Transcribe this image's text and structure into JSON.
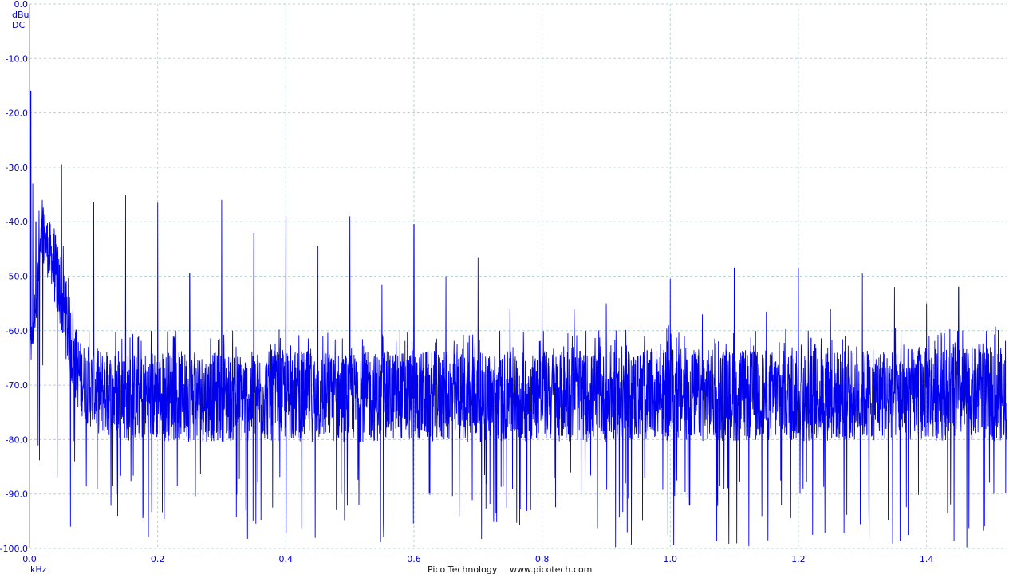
{
  "chart_data": {
    "type": "line",
    "y_unit": "dBu",
    "y_coupling": "DC",
    "x_unit": "kHz",
    "xlim": [
      0.0,
      1.525
    ],
    "ylim": [
      -100.0,
      0.0
    ],
    "x_ticks": [
      "0.0",
      "0.2",
      "0.4",
      "0.6",
      "0.8",
      "1.0",
      "1.2",
      "1.4"
    ],
    "y_ticks": [
      "0.0",
      "-10.0",
      "-20.0",
      "-30.0",
      "-40.0",
      "-50.0",
      "-60.0",
      "-70.0",
      "-80.0",
      "-90.0",
      "-100.0"
    ],
    "grid": true,
    "series": [
      {
        "x": [
          0.0,
          0.002,
          0.005,
          0.01,
          0.015,
          0.02,
          0.025,
          0.03,
          0.035,
          0.04,
          0.045,
          0.05,
          0.055,
          0.06,
          0.065,
          0.07,
          0.075,
          0.08,
          0.085,
          0.09,
          0.095,
          0.1,
          0.105,
          0.11,
          0.12,
          0.13,
          0.14,
          0.15,
          0.16,
          0.17,
          0.18,
          0.19,
          0.2,
          0.21,
          0.22,
          0.23,
          0.24,
          0.25,
          0.26,
          0.27,
          0.28,
          0.29,
          0.3,
          0.31,
          0.32,
          0.33,
          0.34,
          0.35,
          0.36,
          0.37,
          0.38,
          0.39,
          0.4,
          0.41,
          0.42,
          0.43,
          0.44,
          0.45,
          0.46,
          0.47,
          0.48,
          0.49,
          0.5,
          0.51,
          0.52,
          0.53,
          0.54,
          0.55,
          0.56,
          0.57,
          0.58,
          0.59,
          0.6,
          0.61,
          0.62,
          0.63,
          0.64,
          0.65,
          0.66,
          0.67,
          0.68,
          0.69,
          0.7,
          0.71,
          0.72,
          0.73,
          0.74,
          0.75,
          0.76,
          0.77,
          0.78,
          0.79,
          0.8,
          0.81,
          0.82,
          0.83,
          0.84,
          0.85,
          0.86,
          0.87,
          0.88,
          0.89,
          0.9,
          0.91,
          0.92,
          0.93,
          0.94,
          0.95,
          0.96,
          0.97,
          0.98,
          0.99,
          1.0,
          1.01,
          1.02,
          1.03,
          1.04,
          1.05,
          1.06,
          1.07,
          1.08,
          1.09,
          1.1,
          1.11,
          1.12,
          1.13,
          1.14,
          1.15,
          1.16,
          1.17,
          1.18,
          1.19,
          1.2,
          1.21,
          1.22,
          1.23,
          1.24,
          1.25,
          1.26,
          1.27,
          1.28,
          1.29,
          1.3,
          1.31,
          1.32,
          1.33,
          1.34,
          1.35,
          1.36,
          1.37,
          1.38,
          1.39,
          1.4,
          1.41,
          1.42,
          1.43,
          1.44,
          1.45,
          1.46,
          1.47,
          1.48,
          1.49,
          1.5,
          1.51,
          1.52
        ],
        "y": [
          -65.0,
          -16.0,
          -33.0,
          -40.0,
          -38.0,
          -36.0,
          -42.0,
          -46.0,
          -50.0,
          -52.0,
          -55.0,
          -29.5,
          -58.0,
          -60.0,
          -62.0,
          -64.0,
          -66.0,
          -68.0,
          -70.0,
          -72.0,
          -70.0,
          -36.5,
          -71.0,
          -72.0,
          -71.0,
          -72.0,
          -72.0,
          -35.0,
          -73.0,
          -72.0,
          -71.0,
          -72.0,
          -36.5,
          -72.0,
          -73.0,
          -72.0,
          -72.0,
          -49.5,
          -72.0,
          -71.0,
          -72.0,
          -72.0,
          -36.0,
          -73.0,
          -72.0,
          -71.0,
          -72.0,
          -42.0,
          -72.0,
          -73.0,
          -72.0,
          -71.0,
          -39.0,
          -72.0,
          -72.0,
          -73.0,
          -72.0,
          -44.5,
          -72.0,
          -71.0,
          -72.0,
          -72.0,
          -39.0,
          -72.0,
          -73.0,
          -71.0,
          -72.0,
          -51.5,
          -72.0,
          -72.0,
          -71.0,
          -72.0,
          -40.5,
          -72.0,
          -73.0,
          -72.0,
          -72.0,
          -50.0,
          -72.0,
          -71.0,
          -72.0,
          -72.0,
          -46.5,
          -72.0,
          -73.0,
          -72.0,
          -71.0,
          -56.0,
          -72.0,
          -72.0,
          -71.0,
          -72.0,
          -47.5,
          -72.0,
          -73.0,
          -71.0,
          -72.0,
          -56.0,
          -72.0,
          -72.0,
          -71.0,
          -72.0,
          -55.0,
          -72.0,
          -72.0,
          -73.0,
          -71.0,
          -58.0,
          -72.0,
          -72.0,
          -71.0,
          -72.0,
          -50.5,
          -72.0,
          -72.0,
          -71.0,
          -72.0,
          -57.0,
          -72.0,
          -71.0,
          -72.0,
          -72.0,
          -48.5,
          -72.0,
          -72.0,
          -71.0,
          -72.0,
          -56.5,
          -72.0,
          -71.0,
          -72.0,
          -72.0,
          -48.5,
          -72.0,
          -72.0,
          -71.0,
          -72.0,
          -56.0,
          -72.0,
          -71.0,
          -72.0,
          -72.0,
          -49.5,
          -72.0,
          -72.0,
          -71.0,
          -72.0,
          -52.0,
          -72.0,
          -72.0,
          -71.0,
          -72.0,
          -55.0,
          -72.0,
          -71.0,
          -72.0,
          -72.0,
          -52.0,
          -72.0,
          -72.0,
          -71.0,
          -72.0,
          -58.0,
          -72.0,
          -71.0
        ]
      }
    ],
    "noise_floor": {
      "x": [
        0.0,
        0.02,
        0.04,
        0.06,
        0.07,
        0.08,
        0.1,
        0.15,
        0.2,
        0.3,
        0.4,
        0.5,
        0.6,
        0.7,
        0.8,
        0.9,
        1.0,
        1.1,
        1.2,
        1.3,
        1.4,
        1.5,
        1.525
      ],
      "upper": [
        -62.0,
        -37.0,
        -42.0,
        -52.0,
        -58.0,
        -62.0,
        -63.0,
        -64.0,
        -63.5,
        -64.0,
        -63.5,
        -64.0,
        -63.5,
        -64.0,
        -63.5,
        -64.0,
        -63.0,
        -63.5,
        -63.5,
        -63.5,
        -63.0,
        -63.0,
        -63.0
      ],
      "lower": [
        -73.0,
        -50.0,
        -60.0,
        -72.0,
        -78.0,
        -80.0,
        -84.0,
        -86.0,
        -86.0,
        -86.0,
        -86.0,
        -86.0,
        -86.0,
        -86.0,
        -86.0,
        -86.0,
        -86.0,
        -86.0,
        -86.0,
        -86.0,
        -86.0,
        -86.0,
        -86.0
      ],
      "min": -100.0
    }
  },
  "footer": {
    "brand": "Pico Technology",
    "url": "www.picotech.com"
  },
  "colors": {
    "trace": "#0000ee",
    "grid": "#a8d8d8",
    "labels": "#0000cc"
  }
}
